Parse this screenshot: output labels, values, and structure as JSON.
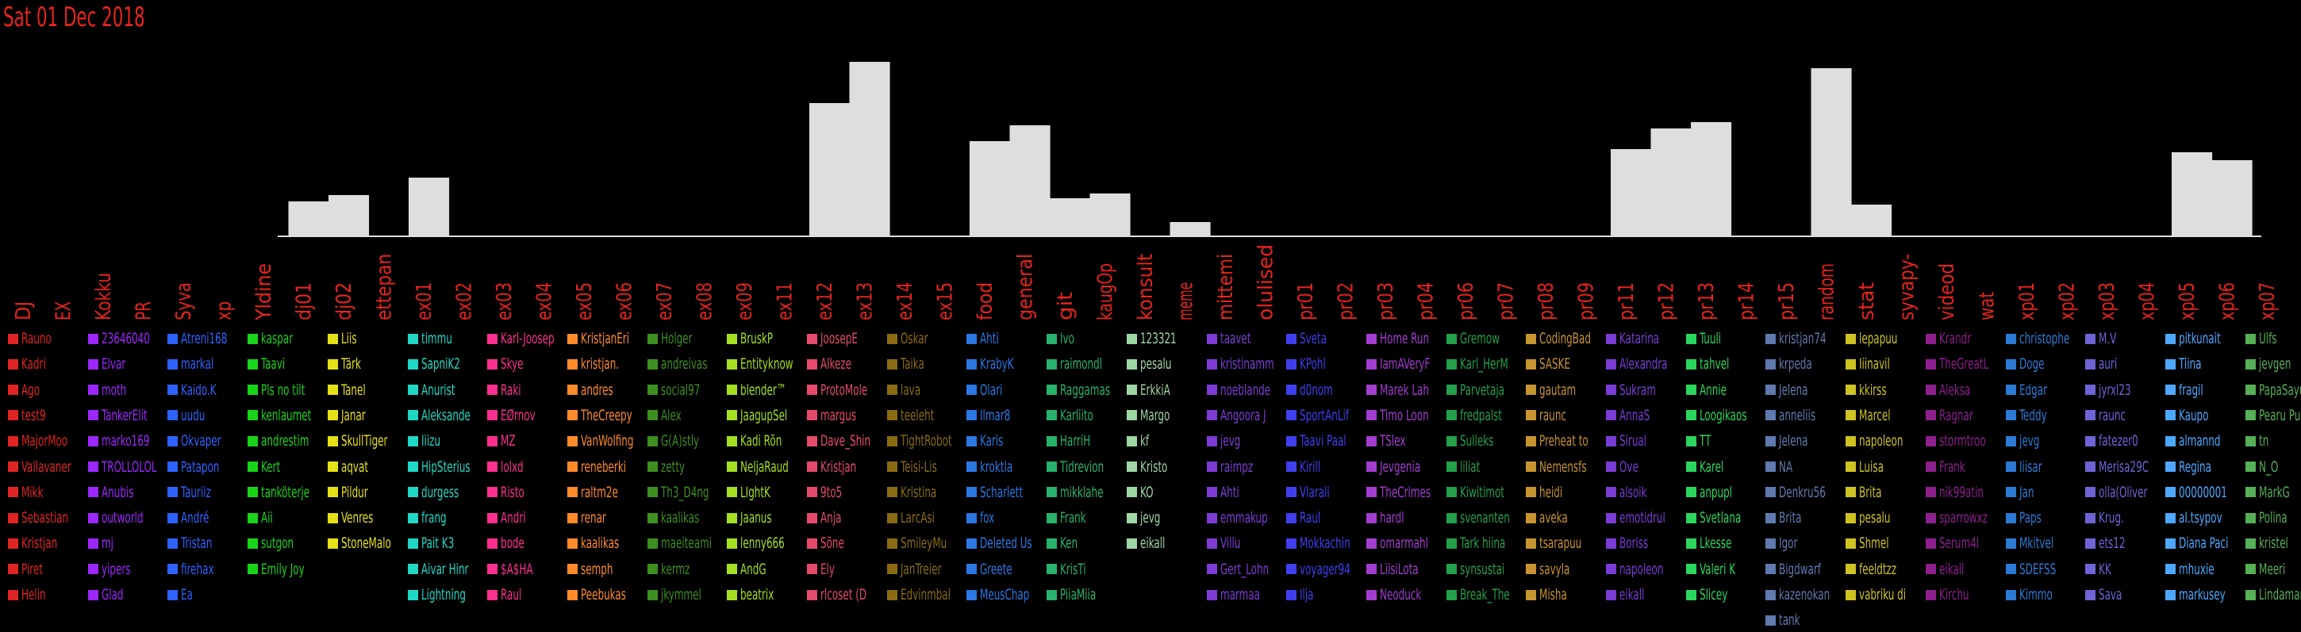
{
  "date": "Sat 01 Dec 2018",
  "chart_data": {
    "type": "bar",
    "categories": [
      "DJ",
      "EX",
      "Kokku",
      "PR",
      "Syva",
      "xp",
      "Yldine",
      "dj01",
      "dj02",
      "ettepan",
      "ex01",
      "ex02",
      "ex03",
      "ex04",
      "ex05",
      "ex06",
      "ex07",
      "ex08",
      "ex09",
      "ex11",
      "ex12",
      "ex13",
      "ex14",
      "ex15",
      "food",
      "general",
      "git",
      "kaugOp",
      "konsult",
      "meme",
      "mittemi",
      "olulised",
      "pr01",
      "pr02",
      "pr03",
      "pr04",
      "pr06",
      "pr07",
      "pr08",
      "pr09",
      "pr11",
      "pr12",
      "pr13",
      "pr14",
      "pr15",
      "random",
      "stat",
      "syvapy-",
      "videod",
      "wat",
      "xp01",
      "xp02",
      "xp03",
      "xp04",
      "xp05",
      "xp06",
      "xp07"
    ],
    "values": [
      0,
      0,
      0,
      0,
      0,
      0,
      0,
      22,
      26,
      0,
      37,
      0,
      0,
      0,
      0,
      0,
      0,
      0,
      0,
      0,
      84,
      110,
      0,
      0,
      60,
      70,
      24,
      27,
      0,
      9,
      0,
      0,
      0,
      0,
      0,
      0,
      0,
      0,
      0,
      0,
      55,
      68,
      72,
      0,
      0,
      106,
      20,
      0,
      0,
      0,
      0,
      0,
      0,
      0,
      53,
      48,
      0
    ]
  },
  "colors": {
    "text": "#e8231f",
    "bars": "#dedede",
    "background": "#000000"
  },
  "columns": [
    {
      "color": "#e02424",
      "names": [
        "Rauno",
        "Kadri",
        "Ago",
        "test9",
        "MajorMoo",
        "Vallavaner",
        "Mikk",
        "Sebastian",
        "Kristjan",
        "Piret",
        "Helin"
      ]
    },
    {
      "color": "#9c27ff",
      "names": [
        "23646040",
        "Elvar",
        "moth",
        "TankerElit",
        "marko169",
        "TROLLOLOL",
        "Anubis",
        "outworld",
        "mj",
        "yipers",
        "Glad"
      ]
    },
    {
      "color": "#2e62ff",
      "names": [
        "Atreni168",
        "markal",
        "Kaido.K",
        "uudu",
        "Okvaper",
        "Patapon",
        "Tauriiz",
        "André",
        "Tristan",
        "firehax",
        "Ea"
      ]
    },
    {
      "color": "#19d419",
      "names": [
        "kaspar",
        "Taavi",
        "Pls no tilt",
        "kenlaumet",
        "andrestim",
        "Kert",
        "tanköterje",
        "Aii",
        "sutgon",
        "Emily Joy"
      ]
    },
    {
      "color": "#e6e017",
      "names": [
        "Liis",
        "Tärk",
        "Tanel",
        "Janar",
        "SkullTiger",
        "aqvat",
        "Pildur",
        "Venres",
        "StoneMalo"
      ]
    },
    {
      "color": "#1fd7c4",
      "names": [
        "timmu",
        "SapniK2",
        "Anurist",
        "Aleksande",
        "Iiizu",
        "HipSterius",
        "durgess",
        "frang",
        "Pait K3",
        "Aivar Hinr",
        "Lightning"
      ]
    },
    {
      "color": "#ff2f8f",
      "names": [
        "Karl-Joosep",
        "Skye",
        "Raki",
        "EØrnov",
        "MZ",
        "lolxd",
        "Risto",
        "Andri",
        "bode",
        "$A$HA",
        "Raul"
      ]
    },
    {
      "color": "#ff8a2a",
      "names": [
        "KristjanEri",
        "kristjan.",
        "andres",
        "TheCreepy",
        "VanWolfing",
        "reneberki",
        "raltm2e",
        "renar",
        "kaalikas",
        "semph",
        "Peebukas"
      ]
    },
    {
      "color": "#3d8f1f",
      "names": [
        "Holger",
        "andreivas",
        "social97",
        "Alex",
        "G(A)stly",
        "zetty",
        "Th3_D4ng",
        "kaalikas",
        "maeiteami",
        "kermz",
        "jkymmel"
      ]
    },
    {
      "color": "#a3e01f",
      "names": [
        "BruskP",
        "Entityknow",
        "blender™",
        "JaagupSel",
        "Kadi Rõn",
        "NeljaRaud",
        "LIghtK",
        "Jaanus",
        "lenny666",
        "AndG",
        "beatrix"
      ]
    },
    {
      "color": "#e64a6a",
      "names": [
        "JoosepE",
        "Alkeze",
        "ProtoMole",
        "margus",
        "Dave_Shin",
        "Kristjan",
        "9to5",
        "Anja",
        "Sõne",
        "Ely",
        "rlcoset (D"
      ]
    },
    {
      "color": "#8b6b12",
      "names": [
        "Oskar",
        "Taika",
        "lava",
        "teeleht",
        "TightRobot",
        "Teisi-Lis",
        "Kristina",
        "LarcAsi",
        "SmileyMu",
        "JanTreier",
        "Edvinmbal"
      ]
    },
    {
      "color": "#2b78e4",
      "names": [
        "Ahti",
        "KrabyK",
        "Olari",
        "Ilmar8",
        "Karis",
        "kroktla",
        "Scharlett",
        "fox",
        "Deleted Us",
        "Greete",
        "MeusChap"
      ]
    },
    {
      "color": "#27b36b",
      "names": [
        "Ivo",
        "raimondl",
        "Raggamas",
        "Karliito",
        "HarriH",
        "Tidrevion",
        "mikklahe",
        "Frank",
        "Ken",
        "KrisTi",
        "PiiaMiia"
      ]
    },
    {
      "color": "#9ed6a4",
      "names": [
        "123321",
        "pesalu",
        "ErkkiA",
        "Margo",
        "kf",
        "Kristo",
        "KO",
        "jevg",
        "eikall"
      ]
    },
    {
      "color": "#7e3bd6",
      "names": [
        "taavet",
        "kristinamm",
        "noeblande",
        "Angoora J",
        "jevg",
        "raimpz",
        "Ahti",
        "emmakup",
        "Villu",
        "Gert_Lohn",
        "marmaa"
      ]
    },
    {
      "color": "#3f3ff0",
      "names": [
        "Sveta",
        "KPohl",
        "d0nom",
        "SportAnLif",
        "Taavi Paal",
        "Kirill",
        "Vlarali",
        "Raul",
        "Mokkachin",
        "voyager94",
        "Ilja"
      ]
    },
    {
      "color": "#a33dd0",
      "names": [
        "Home Run",
        "IamAVeryF",
        "Marek Lah",
        "Timo Loon",
        "TSlex",
        "Jevgenia",
        "TheCrimes",
        "hardl",
        "omarmahl",
        "LiisiLota",
        "Neoduck"
      ]
    },
    {
      "color": "#23a04a",
      "names": [
        "Gremow",
        "Karl_HerM",
        "Parvetaja",
        "fredpalst",
        "Sulleks",
        "liliat",
        "Kiwitimot",
        "svenanten",
        "Tark hiina",
        "synsustai",
        "Break_The"
      ]
    },
    {
      "color": "#c89430",
      "names": [
        "CodingBad",
        "SASKE",
        "gautam",
        "raunc",
        "Preheat to",
        "Nemensfs",
        "heidi",
        "aveka",
        "tsarapuu",
        "savyla",
        "Misha"
      ]
    },
    {
      "color": "#7a3cd6",
      "names": [
        "Katarina",
        "Alexandra",
        "Sukram",
        "AnnaS",
        "Sirual",
        "Ove",
        "alsoik",
        "emotidrul",
        "Boriss",
        "napoleon",
        "eikall"
      ]
    },
    {
      "color": "#2ad65c",
      "names": [
        "Tuuli",
        "tahvel",
        "Annie",
        "Loogikaos",
        "TT",
        "Karel",
        "anpupl",
        "Svetlana",
        "Lkesse",
        "Valeri K",
        "Slicey"
      ]
    },
    {
      "color": "#607ab0",
      "names": [
        "kristjan74",
        "krpeda",
        "Jelena",
        "anneliis",
        "Jelena",
        "NA",
        "Denkru56",
        "Brita",
        "Igor",
        "Bigdwarf",
        "kazenokan",
        "tank"
      ]
    },
    {
      "color": "#cfc322",
      "names": [
        "lepapuu",
        "Iiinavil",
        "kkirss",
        "Marcel",
        "napoleon",
        "Luisa",
        "Brita",
        "pesalu",
        "Shmel",
        "feeldtzz",
        "vabriku di"
      ]
    },
    {
      "color": "#8e1f8e",
      "names": [
        "Krandr",
        "TheGreatL",
        "Aleksa",
        "Ragnar",
        "stormtroo",
        "Frank",
        "nik99atin",
        "sparrowxz",
        "Serum4l",
        "eikall",
        "Kirchu"
      ]
    },
    {
      "color": "#2b7bd6",
      "names": [
        "christophe",
        "Doge",
        "Edgar",
        "Teddy",
        "jevg",
        "Iiisar",
        "Jan",
        "Paps",
        "Mkitvel",
        "SDEFSS",
        "Kimmo"
      ]
    },
    {
      "color": "#6e64d6",
      "names": [
        "M.V",
        "auri",
        "jyrxl23",
        "raunc",
        "fatezer0",
        "Merisa29C",
        "olla(Oliver",
        "Krug.",
        "ets12",
        "KK",
        "Sava"
      ]
    },
    {
      "color": "#4ea8ff",
      "names": [
        "pitkunait",
        "Tiina",
        "fragil",
        "Kaupo",
        "almannd",
        "Regina",
        "00000001",
        "aI.tsypov",
        "Diana Paci",
        "mhuxie",
        "markusey"
      ]
    },
    {
      "color": "#56b056",
      "names": [
        "Ulfs",
        "jevgen",
        "PapaSayu",
        "Pearu Pu",
        "tn",
        "N_O",
        "MarkG",
        "Polina",
        "kristel",
        "Meeri",
        "Lindamar"
      ]
    }
  ]
}
